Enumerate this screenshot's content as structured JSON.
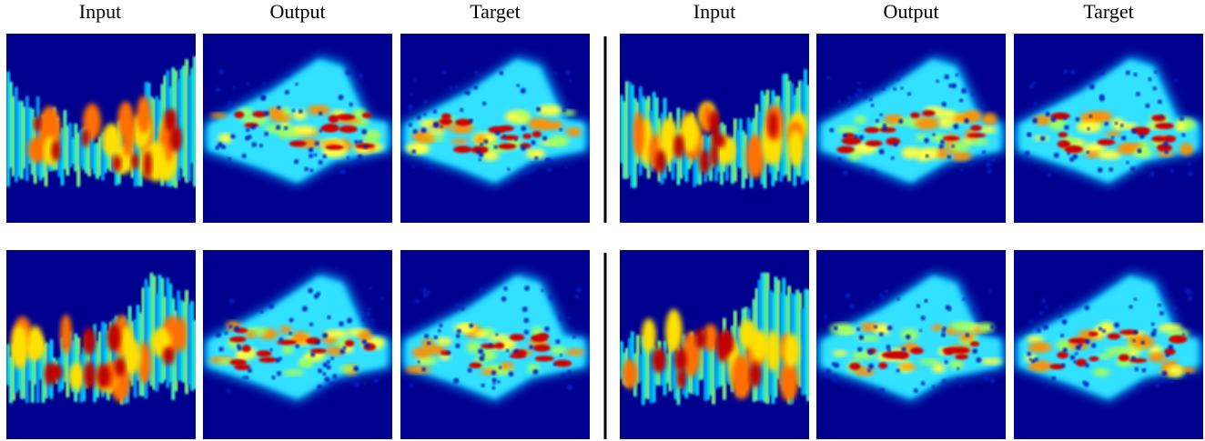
{
  "headers": [
    "Input",
    "Output",
    "Target",
    "Input",
    "Output",
    "Target"
  ]
}
